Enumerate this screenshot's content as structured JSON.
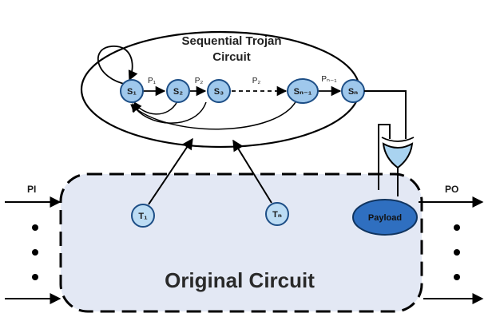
{
  "trojan": {
    "title_line1": "Sequential Trojan",
    "title_line2": "Circuit",
    "states": {
      "s1": "S₁",
      "s2": "S₂",
      "s3": "S₃",
      "sn1": "Sₙ₋₁",
      "sn": "Sₙ"
    },
    "transitions": {
      "p1": "P₁",
      "p2a": "P₂",
      "p2": "P₂",
      "pn1": "Pₙ₋₁"
    }
  },
  "original": {
    "label": "Original Circuit",
    "triggers": {
      "t1": "T₁",
      "tn": "Tₙ"
    },
    "payload": "Payload",
    "pi": "PI",
    "po": "PO"
  },
  "colors": {
    "state_fill": "#9fc8ec",
    "state_stroke": "#1d4e86",
    "original_fill": "#e3e8f4",
    "payload_fill": "#2f6fc0",
    "trigger_fill": "#bcdcf4",
    "gate_fill": "#a9d3f0"
  }
}
